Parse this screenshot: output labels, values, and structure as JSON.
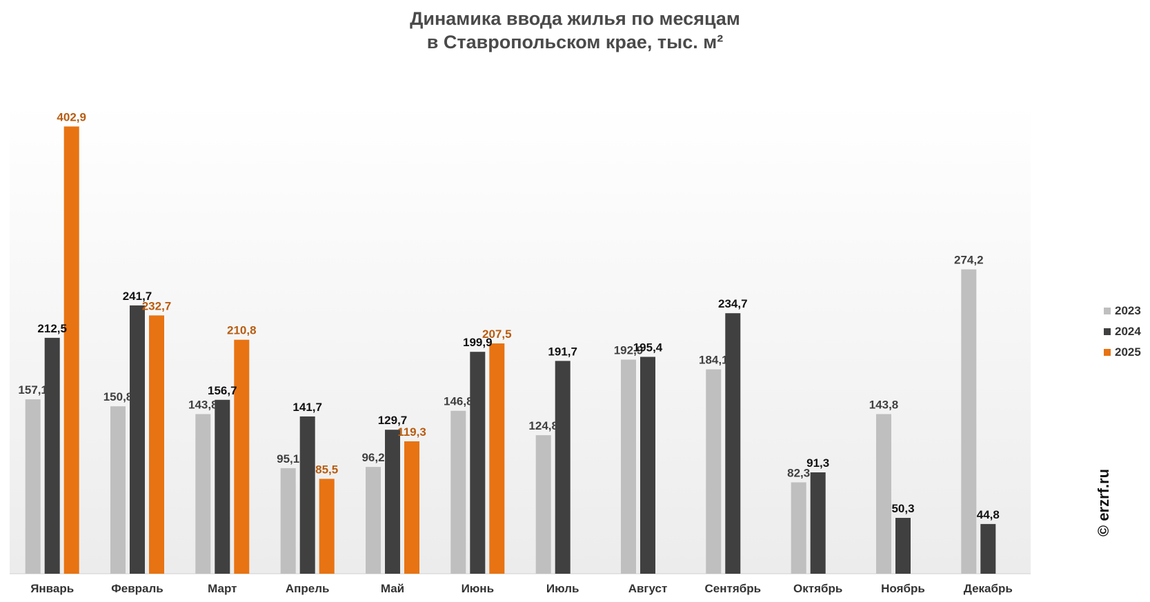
{
  "chart_data": {
    "type": "bar",
    "title_lines": [
      "Динамика ввода жилья по месяцам",
      "в Ставропольском крае, тыс. м²"
    ],
    "categories": [
      "Январь",
      "Февраль",
      "Март",
      "Апрель",
      "Май",
      "Июнь",
      "Июль",
      "Август",
      "Сентябрь",
      "Октябрь",
      "Ноябрь",
      "Декабрь"
    ],
    "series": [
      {
        "name": "2023",
        "color": "#bfbfbf",
        "label_color": "#404040",
        "values": [
          157.1,
          150.8,
          143.8,
          95.1,
          96.2,
          146.8,
          124.8,
          192.9,
          184.1,
          82.3,
          143.8,
          274.2
        ],
        "labels": [
          "157,1",
          "150,8",
          "143,8",
          "95,1",
          "96,2",
          "146,8",
          "124,8",
          "192,9",
          "184,1",
          "82,3",
          "143,8",
          "274,2"
        ]
      },
      {
        "name": "2024",
        "color": "#404040",
        "label_color": "#111111",
        "values": [
          212.5,
          241.7,
          156.7,
          141.7,
          129.7,
          199.9,
          191.7,
          195.4,
          234.7,
          91.3,
          50.3,
          44.8
        ],
        "labels": [
          "212,5",
          "241,7",
          "156,7",
          "141,7",
          "129,7",
          "199,9",
          "191,7",
          "195,4",
          "234,7",
          "91,3",
          "50,3",
          "44,8"
        ]
      },
      {
        "name": "2025",
        "color": "#e87312",
        "label_color": "#b85c10",
        "values": [
          402.9,
          232.7,
          210.8,
          85.5,
          119.3,
          207.5,
          null,
          null,
          null,
          null,
          null,
          null
        ],
        "labels": [
          "402,9",
          "232,7",
          "210,8",
          "85,5",
          "119,3",
          "207,5",
          null,
          null,
          null,
          null,
          null,
          null
        ]
      }
    ],
    "ylim": [
      0,
      410
    ],
    "grid": false,
    "legend_position": "right"
  },
  "watermark": "© erzrf.ru"
}
